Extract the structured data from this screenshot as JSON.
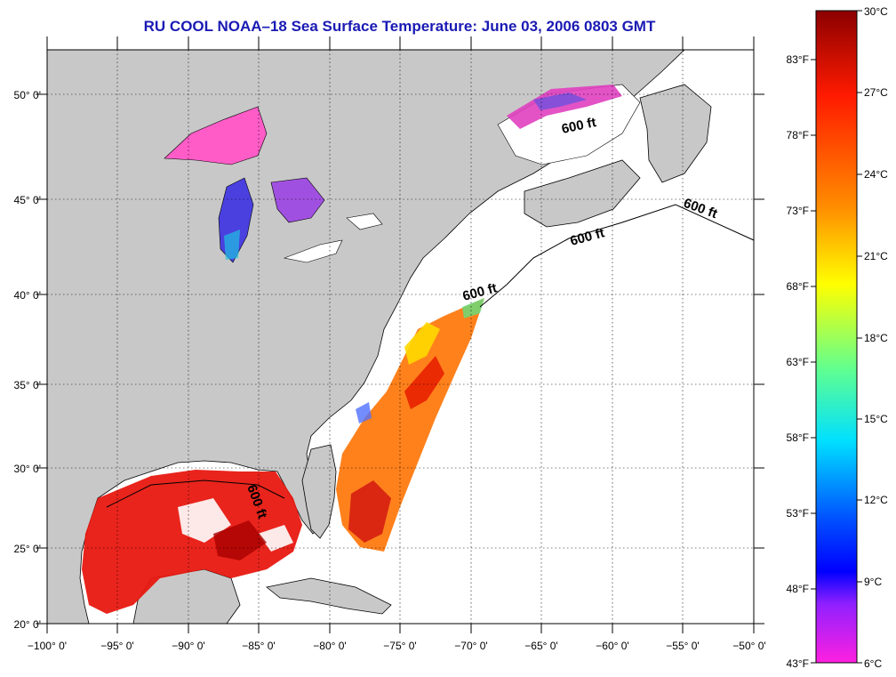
{
  "title": "RU COOL  NOAA–18  Sea Surface Temperature:  June 03, 2006 0803 GMT",
  "map": {
    "lon_labels": [
      "−100° 0'",
      "−95° 0'",
      "−90° 0'",
      "−85° 0'",
      "−80° 0'",
      "−75° 0'",
      "−70° 0'",
      "−65° 0'",
      "−60° 0'",
      "−55° 0'",
      "−50° 0'"
    ],
    "lat_labels": [
      "50° 0'",
      "45° 0'",
      "40° 0'",
      "35° 0'",
      "30° 0'",
      "25° 0'",
      "20° 0'"
    ],
    "contour_label": "600 ft",
    "colors": {
      "land": "#c8c8c8",
      "ocean_no_data": "#ffffff",
      "title": "#1a1ab4",
      "grid": "#000000"
    }
  },
  "colorbar": {
    "celsius_labels": [
      "30°C",
      "27°C",
      "24°C",
      "21°C",
      "18°C",
      "15°C",
      "12°C",
      "9°C",
      "6°C"
    ],
    "fahrenheit_labels": [
      "83°F",
      "78°F",
      "73°F",
      "68°F",
      "63°F",
      "58°F",
      "53°F",
      "48°F",
      "43°F"
    ],
    "gradient": [
      "#8b0000",
      "#ff0000",
      "#ff8c00",
      "#ffff00",
      "#7fff7f",
      "#00ffff",
      "#0080ff",
      "#0000ff",
      "#ff00ff",
      "#ff00ff"
    ]
  }
}
